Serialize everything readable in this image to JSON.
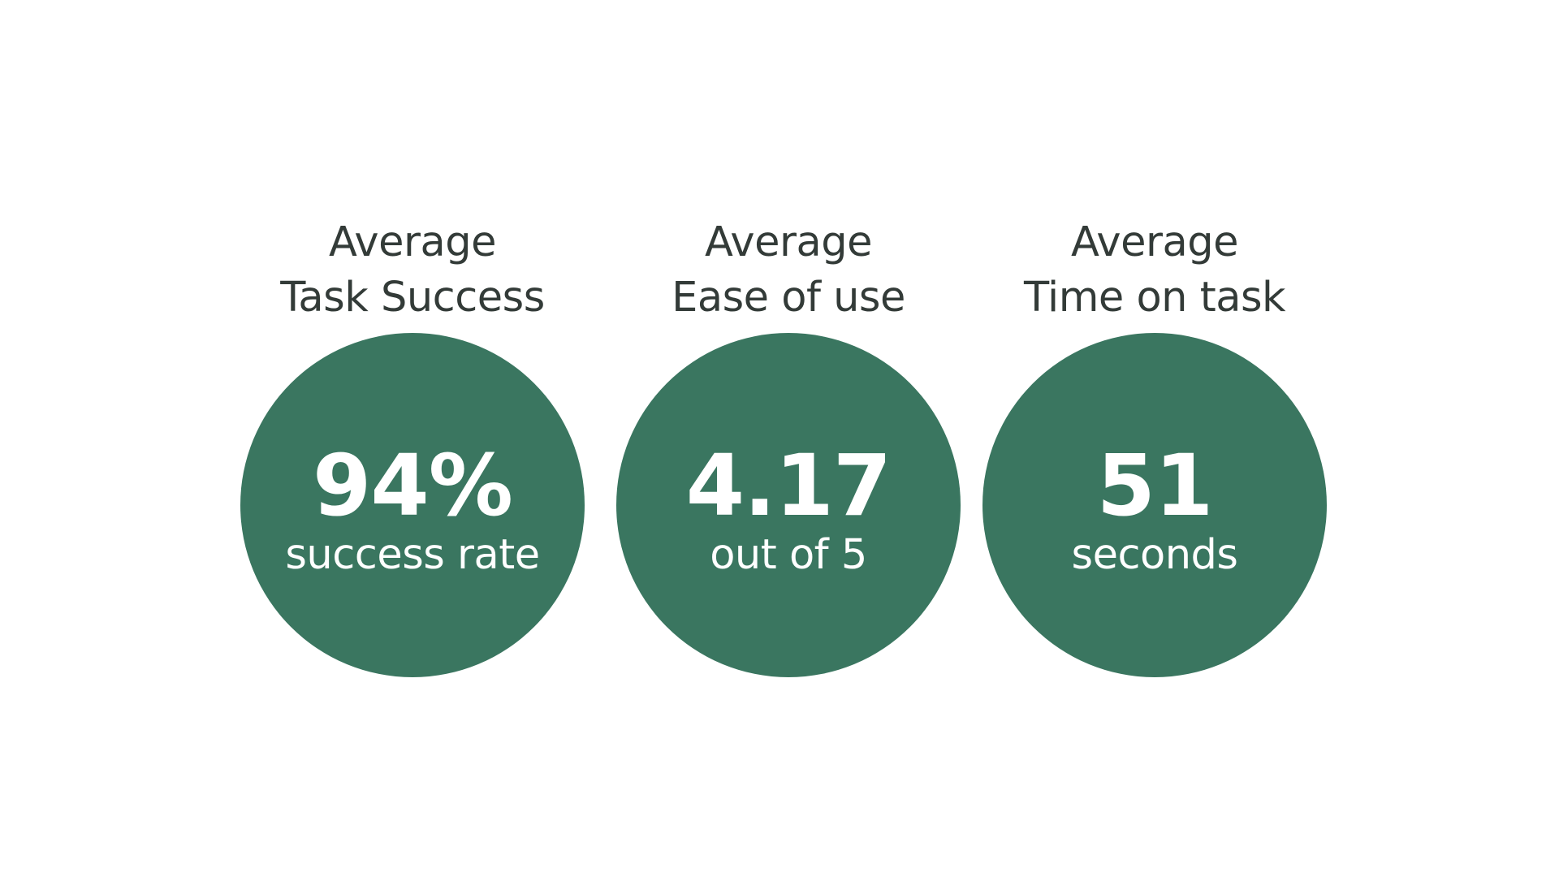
{
  "metrics": [
    {
      "label_line1": "Average",
      "label_line2": "Task Success",
      "value": "94%",
      "unit": "success rate"
    },
    {
      "label_line1": "Average",
      "label_line2": "Ease of use",
      "value": "4.17",
      "unit": "out of 5"
    },
    {
      "label_line1": "Average",
      "label_line2": "Time on task",
      "value": "51",
      "unit": "seconds"
    }
  ],
  "colors": {
    "circle": "#3a7660",
    "label_text": "#333b38",
    "circle_text": "#ffffff",
    "background": "#ffffff"
  }
}
